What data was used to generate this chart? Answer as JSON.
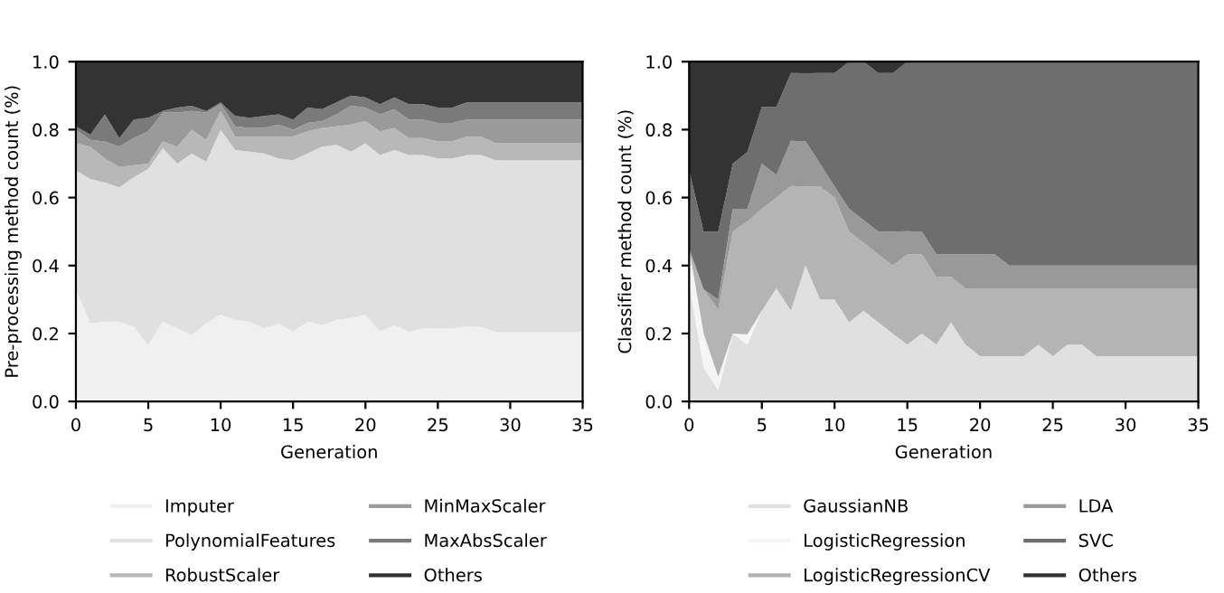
{
  "chart_data": [
    {
      "type": "area",
      "stacked": true,
      "xlabel": "Generation",
      "ylabel": "Pre-processing method count (%)",
      "x": [
        0,
        1,
        2,
        3,
        4,
        5,
        6,
        7,
        8,
        9,
        10,
        11,
        12,
        13,
        14,
        15,
        16,
        17,
        18,
        19,
        20,
        21,
        22,
        23,
        24,
        25,
        26,
        27,
        28,
        29,
        30,
        31,
        32,
        33,
        34,
        35
      ],
      "xlim": [
        0,
        35
      ],
      "xticks": [
        0,
        5,
        10,
        15,
        20,
        25,
        30,
        35
      ],
      "ylim": [
        0,
        1
      ],
      "yticks": [
        {
          "value": 0,
          "label": "0.0"
        },
        {
          "value": 0.2,
          "label": "0.2"
        },
        {
          "value": 0.4,
          "label": "0.4"
        },
        {
          "value": 0.6,
          "label": "0.6"
        },
        {
          "value": 0.8,
          "label": "0.8"
        },
        {
          "value": 1,
          "label": "1.0"
        }
      ],
      "grid": false,
      "legend": "bottom",
      "series": [
        {
          "name": "Imputer",
          "color": "#f0f0f0",
          "values": [
            0.33,
            0.23,
            0.235,
            0.235,
            0.22,
            0.165,
            0.235,
            0.215,
            0.195,
            0.23,
            0.255,
            0.24,
            0.235,
            0.215,
            0.23,
            0.205,
            0.235,
            0.225,
            0.24,
            0.245,
            0.255,
            0.205,
            0.225,
            0.205,
            0.215,
            0.215,
            0.215,
            0.22,
            0.22,
            0.205,
            0.205,
            0.205,
            0.205,
            0.205,
            0.205,
            0.205
          ]
        },
        {
          "name": "PolynomialFeatures",
          "color": "#e0e0e0",
          "values": [
            0.35,
            0.425,
            0.41,
            0.395,
            0.44,
            0.52,
            0.51,
            0.485,
            0.535,
            0.475,
            0.545,
            0.5,
            0.5,
            0.515,
            0.485,
            0.505,
            0.495,
            0.525,
            0.515,
            0.49,
            0.505,
            0.52,
            0.515,
            0.52,
            0.51,
            0.5,
            0.5,
            0.505,
            0.505,
            0.505,
            0.505,
            0.505,
            0.505,
            0.505,
            0.505,
            0.505
          ]
        },
        {
          "name": "RobustScaler",
          "color": "#b8b8b8",
          "values": [
            0.08,
            0.095,
            0.07,
            0.06,
            0.035,
            0.015,
            0.02,
            0.05,
            0.07,
            0.065,
            0.055,
            0.04,
            0.045,
            0.05,
            0.065,
            0.07,
            0.065,
            0.055,
            0.055,
            0.08,
            0.065,
            0.07,
            0.065,
            0.05,
            0.05,
            0.05,
            0.05,
            0.055,
            0.055,
            0.05,
            0.05,
            0.05,
            0.05,
            0.05,
            0.05,
            0.05
          ]
        },
        {
          "name": "MinMaxScaler",
          "color": "#9a9a9a",
          "values": [
            0.04,
            0.02,
            0.05,
            0.06,
            0.08,
            0.095,
            0.085,
            0.1,
            0.055,
            0.08,
            0.02,
            0.03,
            0.025,
            0.025,
            0.035,
            0.02,
            0.025,
            0.02,
            0.035,
            0.055,
            0.04,
            0.05,
            0.055,
            0.055,
            0.055,
            0.055,
            0.055,
            0.05,
            0.05,
            0.07,
            0.07,
            0.07,
            0.07,
            0.07,
            0.07,
            0.07
          ]
        },
        {
          "name": "MaxAbsScaler",
          "color": "#7a7a7a",
          "values": [
            0.01,
            0.015,
            0.08,
            0.025,
            0.055,
            0.04,
            0.005,
            0.015,
            0.015,
            0.005,
            0.005,
            0.03,
            0.03,
            0.035,
            0.03,
            0.03,
            0.045,
            0.035,
            0.035,
            0.03,
            0.03,
            0.03,
            0.035,
            0.045,
            0.045,
            0.045,
            0.045,
            0.05,
            0.05,
            0.05,
            0.05,
            0.05,
            0.05,
            0.05,
            0.05,
            0.05
          ]
        },
        {
          "name": "Others",
          "color": "#333333",
          "values": [
            0.19,
            0.215,
            0.155,
            0.225,
            0.17,
            0.165,
            0.145,
            0.135,
            0.13,
            0.145,
            0.12,
            0.16,
            0.165,
            0.16,
            0.155,
            0.17,
            0.135,
            0.14,
            0.12,
            0.1,
            0.105,
            0.125,
            0.105,
            0.125,
            0.125,
            0.135,
            0.135,
            0.12,
            0.12,
            0.12,
            0.12,
            0.12,
            0.12,
            0.12,
            0.12,
            0.12
          ]
        }
      ]
    },
    {
      "type": "area",
      "stacked": true,
      "xlabel": "Generation",
      "ylabel": "Classifier method count (%)",
      "x": [
        0,
        1,
        2,
        3,
        4,
        5,
        6,
        7,
        8,
        9,
        10,
        11,
        12,
        13,
        14,
        15,
        16,
        17,
        18,
        19,
        20,
        21,
        22,
        23,
        24,
        25,
        26,
        27,
        28,
        29,
        30,
        31,
        32,
        33,
        34,
        35
      ],
      "xlim": [
        0,
        35
      ],
      "xticks": [
        0,
        5,
        10,
        15,
        20,
        25,
        30,
        35
      ],
      "ylim": [
        0,
        1
      ],
      "yticks": [
        {
          "value": 0,
          "label": "0.0"
        },
        {
          "value": 0.2,
          "label": "0.2"
        },
        {
          "value": 0.4,
          "label": "0.4"
        },
        {
          "value": 0.6,
          "label": "0.6"
        },
        {
          "value": 0.8,
          "label": "0.8"
        },
        {
          "value": 1,
          "label": "1.0"
        }
      ],
      "grid": false,
      "legend": "bottom",
      "series": [
        {
          "name": "GaussianNB",
          "color": "#e0e0e0",
          "values": [
            0.35,
            0.1,
            0.033,
            0.2,
            0.167,
            0.267,
            0.333,
            0.267,
            0.4,
            0.3,
            0.3,
            0.233,
            0.267,
            0.233,
            0.2,
            0.167,
            0.2,
            0.167,
            0.233,
            0.167,
            0.133,
            0.133,
            0.133,
            0.133,
            0.167,
            0.133,
            0.167,
            0.167,
            0.133,
            0.133,
            0.133,
            0.133,
            0.133,
            0.133,
            0.133,
            0.133
          ]
        },
        {
          "name": "LogisticRegression",
          "color": "#f5f5f5",
          "values": [
            0.1,
            0.1,
            0.04,
            0,
            0.03,
            0,
            0,
            0,
            0,
            0,
            0,
            0,
            0,
            0,
            0,
            0,
            0,
            0,
            0,
            0,
            0,
            0,
            0,
            0,
            0,
            0,
            0,
            0,
            0,
            0,
            0,
            0,
            0,
            0,
            0,
            0
          ]
        },
        {
          "name": "LogisticRegressionCV",
          "color": "#b4b4b4",
          "values": [
            0,
            0.13,
            0.197,
            0.3,
            0.333,
            0.3,
            0.267,
            0.367,
            0.233,
            0.333,
            0.3,
            0.267,
            0.2,
            0.2,
            0.2,
            0.267,
            0.233,
            0.2,
            0.134,
            0.166,
            0.2,
            0.2,
            0.2,
            0.2,
            0.166,
            0.2,
            0.166,
            0.166,
            0.2,
            0.2,
            0.2,
            0.2,
            0.2,
            0.2,
            0.2,
            0.2
          ]
        },
        {
          "name": "LDA",
          "color": "#999999",
          "values": [
            0,
            0,
            0.03,
            0.067,
            0.037,
            0.133,
            0.067,
            0.133,
            0.133,
            0.067,
            0.033,
            0.067,
            0.067,
            0.067,
            0.1,
            0.067,
            0.067,
            0.066,
            0.066,
            0.1,
            0.1,
            0.1,
            0.067,
            0.067,
            0.067,
            0.067,
            0.067,
            0.067,
            0.067,
            0.067,
            0.067,
            0.067,
            0.067,
            0.067,
            0.067,
            0.067
          ]
        },
        {
          "name": "SVC",
          "color": "#6e6e6e",
          "values": [
            0.23,
            0.17,
            0.2,
            0.133,
            0.167,
            0.167,
            0.2,
            0.2,
            0.2,
            0.267,
            0.334,
            0.433,
            0.466,
            0.467,
            0.467,
            0.499,
            0.5,
            0.567,
            0.567,
            0.567,
            0.567,
            0.567,
            0.6,
            0.6,
            0.6,
            0.6,
            0.6,
            0.6,
            0.6,
            0.6,
            0.6,
            0.6,
            0.6,
            0.6,
            0.6,
            0.6
          ]
        },
        {
          "name": "Others",
          "color": "#333333",
          "values": [
            0.32,
            0.5,
            0.5,
            0.3,
            0.266,
            0.133,
            0.133,
            0.033,
            0.034,
            0.033,
            0.033,
            0,
            0,
            0.033,
            0.033,
            0,
            0,
            0,
            0,
            0,
            0,
            0,
            0,
            0,
            0,
            0,
            0,
            0,
            0,
            0,
            0,
            0,
            0,
            0,
            0,
            0
          ]
        }
      ]
    }
  ]
}
